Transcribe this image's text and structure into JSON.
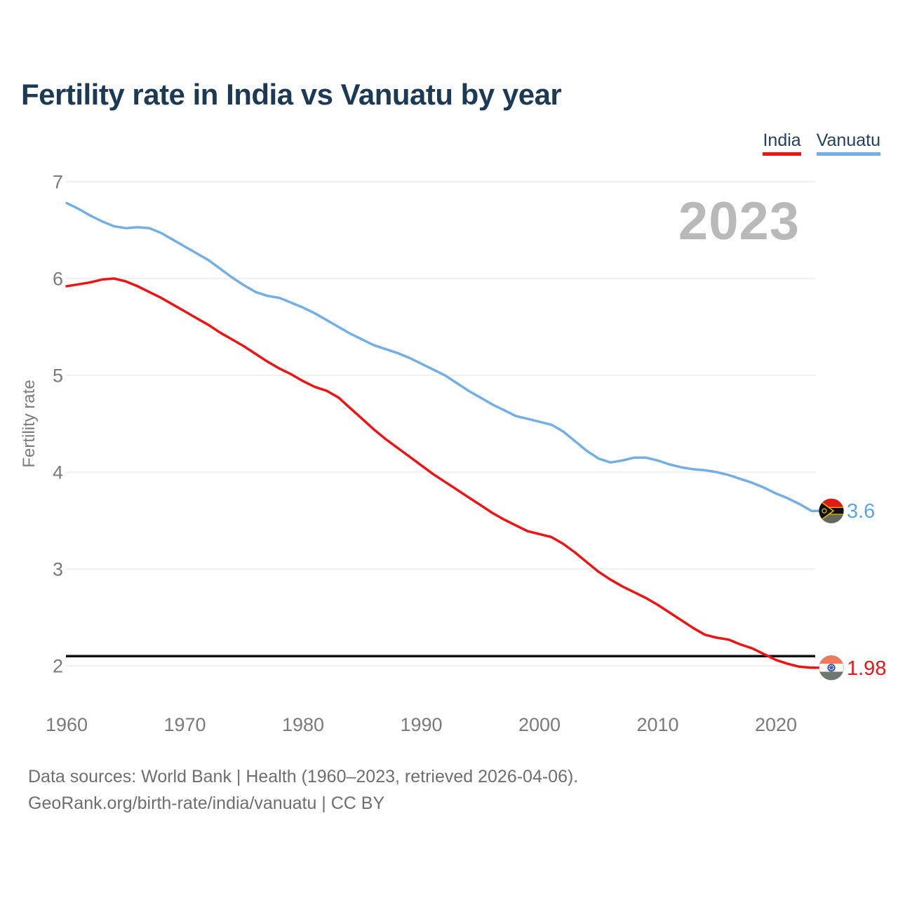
{
  "header": {
    "title": "Fertility rate in India vs Vanuatu by year"
  },
  "legend": {
    "items": [
      {
        "label": "India",
        "color": "#ec1414"
      },
      {
        "label": "Vanuatu",
        "color": "#74afe4"
      }
    ]
  },
  "watermark": "2023",
  "y_axis_title": "Fertility rate",
  "chart_data": {
    "type": "line",
    "title": "Fertility rate in India vs Vanuatu by year",
    "xlabel": "",
    "ylabel": "Fertility rate",
    "x_ticks": [
      1960,
      1970,
      1980,
      1990,
      2000,
      2010,
      2020
    ],
    "y_ticks": [
      2,
      3,
      4,
      5,
      6,
      7
    ],
    "ylim": [
      1.9,
      7.1
    ],
    "grid": true,
    "legend_position": "top-right",
    "watermark": "2023",
    "reference_line": {
      "value": 2.1,
      "color": "#111111"
    },
    "x": [
      1960,
      1961,
      1962,
      1963,
      1964,
      1965,
      1966,
      1967,
      1968,
      1969,
      1970,
      1971,
      1972,
      1973,
      1974,
      1975,
      1976,
      1977,
      1978,
      1979,
      1980,
      1981,
      1982,
      1983,
      1984,
      1985,
      1986,
      1987,
      1988,
      1989,
      1990,
      1991,
      1992,
      1993,
      1994,
      1995,
      1996,
      1997,
      1998,
      1999,
      2000,
      2001,
      2002,
      2003,
      2004,
      2005,
      2006,
      2007,
      2008,
      2009,
      2010,
      2011,
      2012,
      2013,
      2014,
      2015,
      2016,
      2017,
      2018,
      2019,
      2020,
      2021,
      2022,
      2023
    ],
    "series": [
      {
        "name": "Vanuatu",
        "color": "#74afe4",
        "end_value": 3.6,
        "end_label": "3.6",
        "end_label_color": "#5fa5e0",
        "icon": "vanuatu-flag-icon",
        "values": [
          6.78,
          6.72,
          6.65,
          6.59,
          6.54,
          6.52,
          6.53,
          6.52,
          6.47,
          6.4,
          6.33,
          6.26,
          6.19,
          6.1,
          6.01,
          5.93,
          5.86,
          5.82,
          5.8,
          5.75,
          5.7,
          5.64,
          5.57,
          5.5,
          5.43,
          5.37,
          5.31,
          5.27,
          5.23,
          5.18,
          5.12,
          5.06,
          5.0,
          4.92,
          4.84,
          4.77,
          4.7,
          4.64,
          4.58,
          4.55,
          4.52,
          4.49,
          4.42,
          4.32,
          4.22,
          4.14,
          4.1,
          4.12,
          4.15,
          4.15,
          4.12,
          4.08,
          4.05,
          4.03,
          4.02,
          4.0,
          3.97,
          3.93,
          3.89,
          3.84,
          3.78,
          3.73,
          3.67,
          3.6
        ]
      },
      {
        "name": "India",
        "color": "#ec1414",
        "end_value": 1.98,
        "end_label": "1.98",
        "end_label_color": "#ec1414",
        "icon": "india-flag-icon",
        "values": [
          5.92,
          5.94,
          5.96,
          5.99,
          6.0,
          5.97,
          5.92,
          5.86,
          5.8,
          5.73,
          5.66,
          5.59,
          5.52,
          5.44,
          5.37,
          5.3,
          5.22,
          5.14,
          5.07,
          5.01,
          4.94,
          4.88,
          4.84,
          4.77,
          4.66,
          4.55,
          4.44,
          4.34,
          4.25,
          4.16,
          4.07,
          3.98,
          3.9,
          3.82,
          3.74,
          3.66,
          3.58,
          3.51,
          3.45,
          3.39,
          3.36,
          3.33,
          3.26,
          3.17,
          3.07,
          2.97,
          2.89,
          2.82,
          2.76,
          2.7,
          2.63,
          2.55,
          2.47,
          2.39,
          2.32,
          2.29,
          2.27,
          2.22,
          2.18,
          2.12,
          2.06,
          2.02,
          1.99,
          1.98
        ]
      }
    ]
  },
  "footer": {
    "line1": "Data sources: World Bank | Health (1960–2023, retrieved 2026-04-06).",
    "line2": "GeoRank.org/birth-rate/india/vanuatu | CC BY"
  }
}
